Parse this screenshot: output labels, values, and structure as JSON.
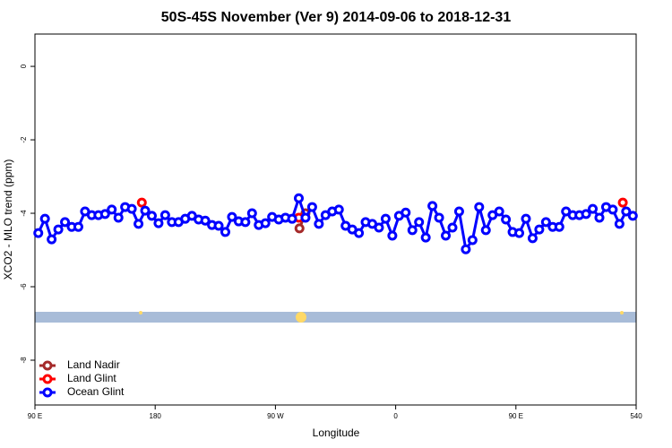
{
  "chart_data": {
    "type": "line",
    "title": "50S-45S November (Ver 9)   2014-09-06 to 2018-12-31",
    "x_label": "Longitude",
    "y_label": "XCO2 - MLO trend (ppm)",
    "xlim": [
      90,
      540
    ],
    "ylim": [
      -9.22,
      0.88
    ],
    "xticks": [
      {
        "value": 90,
        "label": "90 E"
      },
      180,
      {
        "value": 270,
        "label": "90 W"
      },
      {
        "value": 360,
        "label": "0"
      },
      {
        "value": 450,
        "label": "90 E"
      },
      540
    ],
    "yticks": [
      -8,
      -6,
      -4,
      -2,
      0
    ],
    "legend": "bottom-left",
    "series": [
      {
        "name": "Land Nadir",
        "color": "#a52a2a",
        "x": [
          288,
          292.5
        ],
        "values": [
          -4.41,
          -4.0
        ]
      },
      {
        "name": "Land Glint",
        "color": "#ff0000",
        "x": [
          170,
          287.5,
          530
        ],
        "values": [
          -3.71,
          -4.12,
          -3.71
        ]
      },
      {
        "name": "Ocean Glint",
        "color": "#0000ff",
        "x": [
          92.5,
          97.5,
          102.5,
          107.5,
          112.5,
          117.5,
          122.5,
          127.5,
          132.5,
          137.5,
          142.5,
          147.5,
          152.5,
          157.5,
          162.5,
          167.5,
          172.5,
          177.5,
          182.5,
          187.5,
          192.5,
          197.5,
          202.5,
          207.5,
          212.5,
          217.5,
          222.5,
          227.5,
          232.5,
          237.5,
          242.5,
          247.5,
          252.5,
          257.5,
          262.5,
          267.5,
          272.5,
          277.5,
          282.5,
          287.5,
          292.5,
          297.5,
          302.5,
          307.5,
          312.5,
          317.5,
          322.5,
          327.5,
          332.5,
          337.5,
          342.5,
          347.5,
          352.5,
          357.5,
          362.5,
          367.5,
          372.5,
          377.5,
          382.5,
          387.5,
          392.5,
          397.5,
          402.5,
          407.5,
          412.5,
          417.5,
          422.5,
          427.5,
          432.5,
          437.5,
          442.5,
          447.5,
          452.5,
          457.5,
          462.5,
          467.5,
          472.5,
          477.5,
          482.5,
          487.5,
          492.5,
          497.5,
          502.5,
          507.5,
          512.5,
          517.5,
          522.5,
          527.5,
          532.5,
          537.5
        ],
        "values": [
          -4.54,
          -4.15,
          -4.71,
          -4.44,
          -4.24,
          -4.37,
          -4.37,
          -3.95,
          -4.05,
          -4.05,
          -4.02,
          -3.9,
          -4.12,
          -3.83,
          -3.88,
          -4.29,
          -3.93,
          -4.07,
          -4.27,
          -4.05,
          -4.24,
          -4.24,
          -4.15,
          -4.07,
          -4.17,
          -4.2,
          -4.32,
          -4.34,
          -4.51,
          -4.1,
          -4.22,
          -4.24,
          -4.0,
          -4.32,
          -4.27,
          -4.1,
          -4.17,
          -4.12,
          -4.15,
          -3.59,
          -4.12,
          -3.83,
          -4.29,
          -4.05,
          -3.95,
          -3.9,
          -4.34,
          -4.44,
          -4.54,
          -4.24,
          -4.29,
          -4.39,
          -4.15,
          -4.61,
          -4.07,
          -3.98,
          -4.46,
          -4.24,
          -4.66,
          -3.8,
          -4.12,
          -4.61,
          -4.39,
          -3.95,
          -4.98,
          -4.73,
          -3.83,
          -4.46,
          -4.05,
          -3.95,
          -4.17,
          -4.51,
          -4.54,
          -4.15,
          -4.68,
          -4.44,
          -4.24,
          -4.37,
          -4.37,
          -3.95,
          -4.05,
          -4.05,
          -4.02,
          -3.88,
          -4.12,
          -3.83,
          -3.9,
          -4.29,
          -3.95,
          -4.07
        ]
      }
    ]
  }
}
